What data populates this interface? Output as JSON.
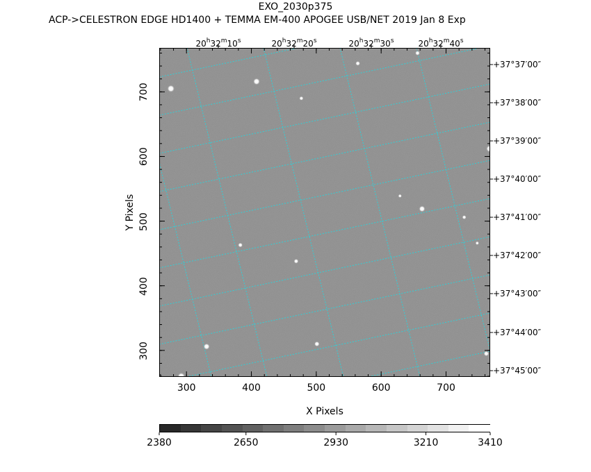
{
  "title": {
    "object": "EXO_2030p375",
    "instrument_line": "ACP->CELESTRON EDGE HD1400 + TEMMA EM-400 APOGEE USB/NET   2019 Jan  8     Exp"
  },
  "axes": {
    "xlabel": "X Pixels",
    "ylabel": "Y Pixels",
    "x_ticks": [
      "300",
      "400",
      "500",
      "600",
      "700"
    ],
    "y_ticks": [
      "300",
      "400",
      "500",
      "600",
      "700"
    ],
    "x_range": [
      258,
      768
    ],
    "y_range": [
      259,
      768
    ]
  },
  "ra_labels": [
    {
      "h": "20",
      "hs": "h",
      "m": "32",
      "ms": "m",
      "s": "10",
      "ss": "s"
    },
    {
      "h": "20",
      "hs": "h",
      "m": "32",
      "ms": "m",
      "s": "20",
      "ss": "s"
    },
    {
      "h": "20",
      "hs": "h",
      "m": "32",
      "ms": "m",
      "s": "30",
      "ss": "s"
    },
    {
      "h": "20",
      "hs": "h",
      "m": "32",
      "ms": "m",
      "s": "40",
      "ss": "s"
    }
  ],
  "dec_labels": [
    "+37°37′00″",
    "+37°38′00″",
    "+37°39′00″",
    "+37°40′00″",
    "+37°41′00″",
    "+37°42′00″",
    "+37°43′00″",
    "+37°44′00″",
    "+37°45′00″"
  ],
  "colorbar": {
    "labels": [
      "2380",
      "2650",
      "2930",
      "3210",
      "3410"
    ],
    "range": [
      2380,
      3410
    ]
  },
  "colors": {
    "grid": "#2fd0d8",
    "sky": "#8a8a8a"
  },
  "stars": [
    {
      "x": 276,
      "y": 705,
      "mag": 1.0
    },
    {
      "x": 408,
      "y": 716,
      "mag": 0.9
    },
    {
      "x": 564,
      "y": 744,
      "mag": 0.5
    },
    {
      "x": 656,
      "y": 760,
      "mag": 0.5
    },
    {
      "x": 477,
      "y": 690,
      "mag": 0.4
    },
    {
      "x": 767,
      "y": 612,
      "mag": 0.9
    },
    {
      "x": 663,
      "y": 519,
      "mag": 0.8
    },
    {
      "x": 728,
      "y": 506,
      "mag": 0.4
    },
    {
      "x": 383,
      "y": 463,
      "mag": 0.5
    },
    {
      "x": 469,
      "y": 438,
      "mag": 0.5
    },
    {
      "x": 331,
      "y": 306,
      "mag": 0.8
    },
    {
      "x": 501,
      "y": 310,
      "mag": 0.6
    },
    {
      "x": 292,
      "y": 260,
      "mag": 1.0
    },
    {
      "x": 762,
      "y": 295,
      "mag": 0.6
    },
    {
      "x": 629,
      "y": 539,
      "mag": 0.3
    },
    {
      "x": 748,
      "y": 466,
      "mag": 0.3
    }
  ]
}
